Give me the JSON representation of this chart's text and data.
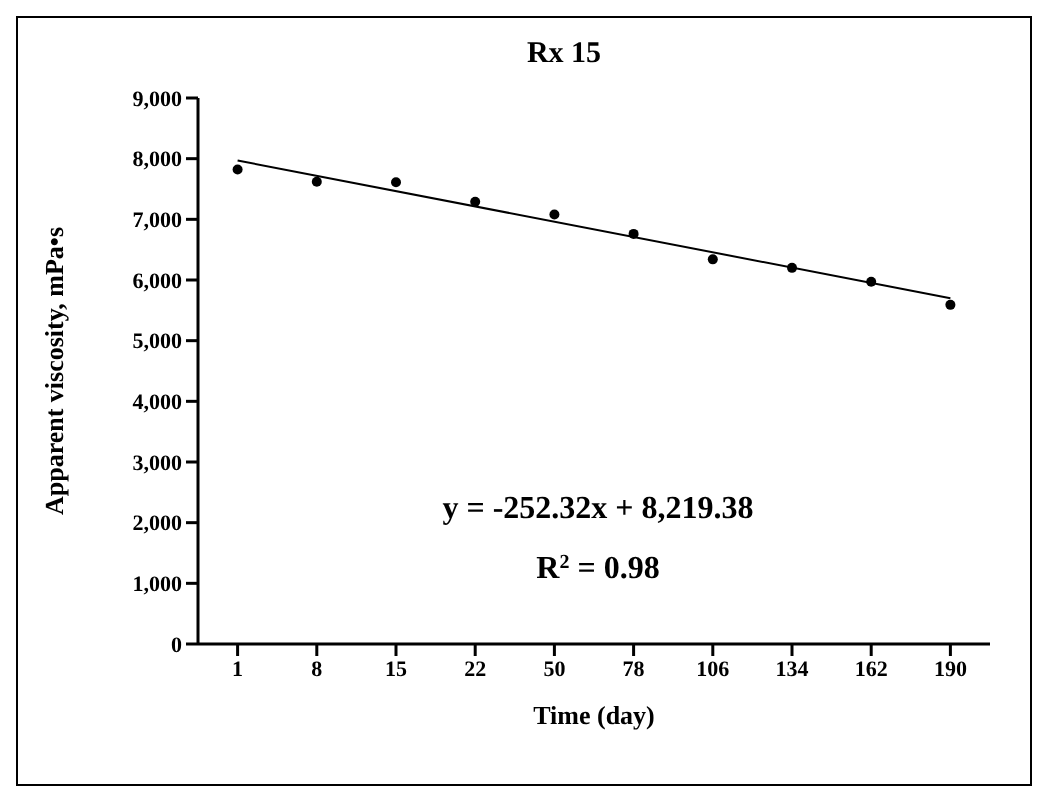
{
  "chart_data": {
    "type": "scatter",
    "title": "Rx 15",
    "xlabel": "Time (day)",
    "ylabel": "Apparent viscosity, mPa•s",
    "categories": [
      "1",
      "8",
      "15",
      "22",
      "50",
      "78",
      "106",
      "134",
      "162",
      "190"
    ],
    "series": [
      {
        "color": "#000000",
        "marker": "circle",
        "values": [
          7820,
          7620,
          7610,
          7290,
          7080,
          6760,
          6340,
          6200,
          5970,
          5590
        ]
      },
      {
        "type": "line",
        "color": "#000000",
        "marker": "none",
        "x": [
          "1",
          "190"
        ],
        "values": [
          7970,
          5700
        ]
      }
    ],
    "ylim": [
      0,
      9000
    ],
    "yticks": [
      0,
      {
        "value": 1000,
        "label": "1,000"
      },
      {
        "value": 2000,
        "label": "2,000"
      },
      {
        "value": 3000,
        "label": "3,000"
      },
      {
        "value": 4000,
        "label": "4,000"
      },
      {
        "value": 5000,
        "label": "5,000"
      },
      {
        "value": 6000,
        "label": "6,000"
      },
      {
        "value": 7000,
        "label": "7,000"
      },
      {
        "value": 8000,
        "label": "8,000"
      },
      {
        "value": 9000,
        "label": "9,000"
      }
    ],
    "annotations": [
      "y = -252.32x + 8,219.38",
      "R$^{2}$ = 0.98"
    ]
  }
}
